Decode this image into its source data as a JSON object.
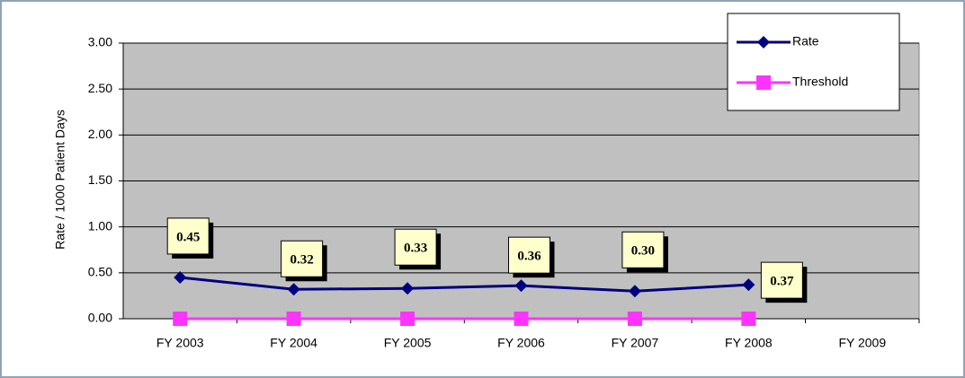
{
  "chart_data": {
    "type": "line",
    "y_label": "Rate / 1000 Patient Days",
    "categories": [
      "FY 2003",
      "FY 2004",
      "FY 2005",
      "FY 2006",
      "FY 2007",
      "FY 2008",
      "FY 2009"
    ],
    "series": [
      {
        "name": "Rate",
        "color": "#000080",
        "marker": "diamond",
        "values": [
          0.45,
          0.32,
          0.33,
          0.36,
          0.3,
          0.37,
          null
        ],
        "value_labels": [
          "0.45",
          "0.32",
          "0.33",
          "0.36",
          "0.30",
          "0.37",
          null
        ]
      },
      {
        "name": "Threshold",
        "color": "#ff33ff",
        "marker": "square",
        "values": [
          0,
          0,
          0,
          0,
          0,
          0,
          null
        ]
      }
    ],
    "ylim": [
      0,
      3
    ],
    "yticks": [
      {
        "value": 0,
        "label": "0.00"
      },
      {
        "value": 0.5,
        "label": "0.50"
      },
      {
        "value": 1,
        "label": "1.00"
      },
      {
        "value": 1.5,
        "label": "1.50"
      },
      {
        "value": 2,
        "label": "2.00"
      },
      {
        "value": 2.5,
        "label": "2.50"
      },
      {
        "value": 3,
        "label": "3.00"
      }
    ],
    "grid": true,
    "legend": "upper right"
  }
}
